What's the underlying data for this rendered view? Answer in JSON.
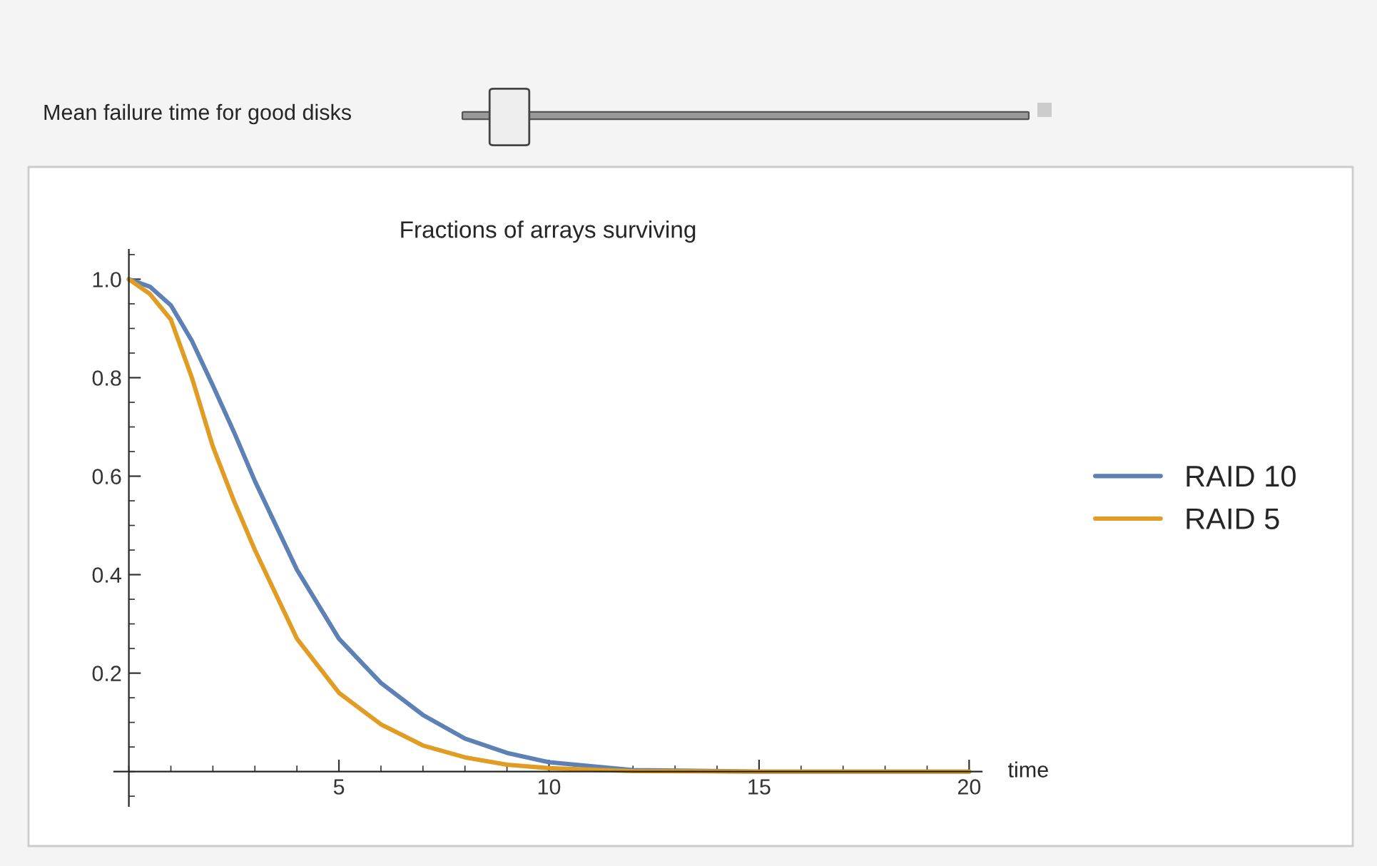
{
  "chart_data": {
    "type": "line",
    "title": "Fractions of arrays surviving",
    "xlabel": "time",
    "annotations": [
      "Mean failure time for good disks"
    ],
    "series": [
      {
        "name": "RAID 10",
        "color": "#5e81b5",
        "x": [
          0,
          0.5,
          1,
          1.5,
          2,
          2.5,
          3,
          4,
          5,
          6,
          7,
          8,
          9,
          10,
          12,
          15,
          20
        ],
        "values": [
          1.0,
          0.985,
          0.947,
          0.875,
          0.784,
          0.69,
          0.59,
          0.41,
          0.27,
          0.18,
          0.115,
          0.067,
          0.038,
          0.019,
          0.003,
          0,
          0
        ]
      },
      {
        "name": "RAID 5",
        "color": "#e19c24",
        "x": [
          0,
          0.5,
          1,
          1.5,
          2,
          2.5,
          3,
          4,
          5,
          6,
          7,
          8,
          9,
          10,
          12,
          15,
          20
        ],
        "values": [
          1.0,
          0.97,
          0.918,
          0.8,
          0.66,
          0.55,
          0.45,
          0.27,
          0.16,
          0.096,
          0.053,
          0.029,
          0.014,
          0.007,
          0.001,
          0,
          0
        ]
      }
    ],
    "xlim": [
      -0.35,
      20.3
    ],
    "ylim": [
      -0.07,
      1.06
    ],
    "xticks": [
      5,
      10,
      15,
      20
    ],
    "yticks": [
      0.2,
      0.4,
      0.6,
      0.8,
      {
        "value": 1,
        "label": "1.0"
      }
    ],
    "grid": false,
    "legend": "right",
    "marker": "none",
    "line_style": "solid"
  }
}
